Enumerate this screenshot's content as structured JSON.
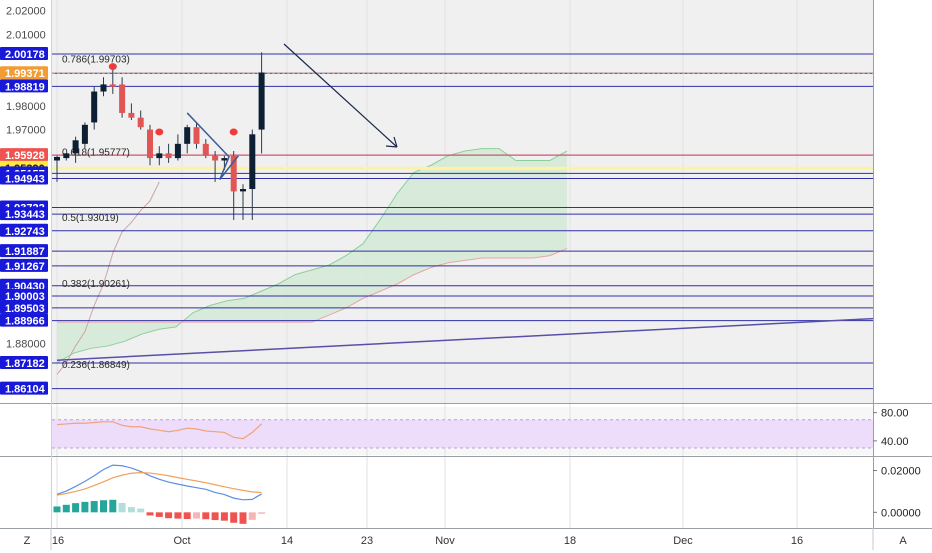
{
  "chart_data": {
    "type": "candlestick",
    "price_axis": {
      "ylim": [
        1.855,
        2.0245
      ],
      "ticks": [
        2.02,
        2.01,
        1.98,
        1.97,
        1.88
      ],
      "tick_labels": [
        "2.02000",
        "2.01000",
        "1.98000",
        "1.97000",
        "1.88000"
      ]
    },
    "x_axis": {
      "tick_labels": [
        "16",
        "Oct",
        "14",
        "23",
        "Nov",
        "18",
        "Dec",
        "16"
      ]
    },
    "candles": [
      {
        "o": 1.957,
        "h": 1.959,
        "l": 1.948,
        "c": 1.9585
      },
      {
        "o": 1.958,
        "h": 1.96,
        "l": 1.957,
        "c": 1.96
      },
      {
        "o": 1.96,
        "h": 1.967,
        "l": 1.956,
        "c": 1.9655
      },
      {
        "o": 1.964,
        "h": 1.973,
        "l": 1.962,
        "c": 1.972
      },
      {
        "o": 1.973,
        "h": 1.988,
        "l": 1.97,
        "c": 1.986
      },
      {
        "o": 1.986,
        "h": 1.992,
        "l": 1.984,
        "c": 1.989
      },
      {
        "o": 1.989,
        "h": 1.997,
        "l": 1.985,
        "c": 1.988
      },
      {
        "o": 1.989,
        "h": 1.992,
        "l": 1.975,
        "c": 1.977
      },
      {
        "o": 1.977,
        "h": 1.981,
        "l": 1.974,
        "c": 1.975
      },
      {
        "o": 1.975,
        "h": 1.978,
        "l": 1.97,
        "c": 1.971
      },
      {
        "o": 1.97,
        "h": 1.972,
        "l": 1.955,
        "c": 1.958
      },
      {
        "o": 1.958,
        "h": 1.963,
        "l": 1.955,
        "c": 1.96
      },
      {
        "o": 1.96,
        "h": 1.964,
        "l": 1.956,
        "c": 1.958
      },
      {
        "o": 1.958,
        "h": 1.968,
        "l": 1.957,
        "c": 1.964
      },
      {
        "o": 1.964,
        "h": 1.972,
        "l": 1.96,
        "c": 1.971
      },
      {
        "o": 1.971,
        "h": 1.973,
        "l": 1.962,
        "c": 1.964
      },
      {
        "o": 1.964,
        "h": 1.966,
        "l": 1.958,
        "c": 1.959
      },
      {
        "o": 1.959,
        "h": 1.961,
        "l": 1.948,
        "c": 1.957
      },
      {
        "o": 1.957,
        "h": 1.959,
        "l": 1.953,
        "c": 1.958
      },
      {
        "o": 1.959,
        "h": 1.961,
        "l": 1.932,
        "c": 1.944
      },
      {
        "o": 1.944,
        "h": 1.947,
        "l": 1.932,
        "c": 1.945
      },
      {
        "o": 1.945,
        "h": 1.97,
        "l": 1.932,
        "c": 1.968
      },
      {
        "o": 1.97,
        "h": 2.0025,
        "l": 1.96,
        "c": 1.994
      }
    ],
    "horizontal_levels": [
      2.00178,
      1.99371,
      1.98819,
      1.95928,
      1.9539,
      1.95157,
      1.94943,
      1.93722,
      1.93443,
      1.92743,
      1.91887,
      1.91267,
      1.9043,
      1.90003,
      1.89503,
      1.88966,
      1.87182,
      1.86104
    ],
    "price_labels": [
      {
        "text": "2.00178",
        "kind": "level"
      },
      {
        "text": "1.99371",
        "kind": "orange"
      },
      {
        "text": "1.98819",
        "kind": "level"
      },
      {
        "text": "1.95928",
        "kind": "red"
      },
      {
        "text": "1.95390",
        "kind": "yellow"
      },
      {
        "text": "1.95157",
        "kind": "level"
      },
      {
        "text": "1.94943",
        "kind": "level"
      },
      {
        "text": "1.93722",
        "kind": "level"
      },
      {
        "text": "1.93443",
        "kind": "level"
      },
      {
        "text": "1.92743",
        "kind": "level"
      },
      {
        "text": "1.91887",
        "kind": "level"
      },
      {
        "text": "1.91267",
        "kind": "level"
      },
      {
        "text": "1.90430",
        "kind": "level"
      },
      {
        "text": "1.90003",
        "kind": "level"
      },
      {
        "text": "1.89503",
        "kind": "level"
      },
      {
        "text": "1.88966",
        "kind": "level"
      },
      {
        "text": "1.87182",
        "kind": "level"
      },
      {
        "text": "1.86104",
        "kind": "level"
      }
    ],
    "fib_labels": [
      {
        "text": "0.786(1.99703)",
        "value": 1.99703
      },
      {
        "text": "0.618(1.95777)",
        "value": 1.95777
      },
      {
        "text": "0.5(1.93019)",
        "value": 1.93019
      },
      {
        "text": "0.382(1.90261)",
        "value": 1.90261
      },
      {
        "text": "0.236(1.86849)",
        "value": 1.86849
      }
    ],
    "rsi": {
      "ticks": [
        80.0,
        40.0
      ],
      "tick_labels": [
        "80.00",
        "40.00"
      ],
      "ylim": [
        20,
        88
      ],
      "band": [
        30,
        70
      ],
      "values": [
        63,
        64,
        65,
        65,
        66,
        67,
        67,
        62,
        60,
        60,
        57,
        55,
        53,
        55,
        58,
        57,
        54,
        53,
        52,
        45,
        43,
        52,
        64
      ]
    },
    "macd": {
      "ticks": [
        0.02,
        0.0
      ],
      "tick_labels": [
        "0.02000",
        "0.00000"
      ],
      "ylim": [
        -0.0075,
        0.026
      ],
      "macd": [
        0.0086,
        0.0102,
        0.0124,
        0.0148,
        0.0175,
        0.0205,
        0.0226,
        0.0223,
        0.0212,
        0.0196,
        0.0175,
        0.0158,
        0.0145,
        0.0135,
        0.0126,
        0.0118,
        0.011,
        0.0095,
        0.0085,
        0.0068,
        0.006,
        0.0062,
        0.0088
      ],
      "signal": [
        0.0082,
        0.009,
        0.01,
        0.0112,
        0.0128,
        0.0146,
        0.0165,
        0.0178,
        0.0187,
        0.019,
        0.0188,
        0.0182,
        0.0175,
        0.0166,
        0.0158,
        0.015,
        0.0142,
        0.0132,
        0.0122,
        0.0113,
        0.0105,
        0.0098,
        0.0095
      ],
      "hist": [
        0.0028,
        0.0036,
        0.0044,
        0.005,
        0.0054,
        0.0058,
        0.006,
        0.0045,
        0.0025,
        0.0018,
        -0.0015,
        -0.0022,
        -0.0028,
        -0.003,
        -0.0032,
        -0.003,
        -0.0033,
        -0.0037,
        -0.004,
        -0.005,
        -0.0055,
        -0.0036,
        -0.0007
      ]
    },
    "ichimoku": {
      "span_a": [
        1.872,
        1.876,
        1.878,
        1.879,
        1.881,
        1.884,
        1.886,
        1.887,
        1.893,
        1.896,
        1.898,
        1.899,
        1.902,
        1.905,
        1.909,
        1.911,
        1.913,
        1.917,
        1.922,
        1.932,
        1.943,
        1.952,
        1.955,
        1.959,
        1.961,
        1.962,
        1.962,
        1.957,
        1.957,
        1.957,
        1.961
      ],
      "span_b": [
        1.889,
        1.889,
        1.889,
        1.889,
        1.889,
        1.889,
        1.889,
        1.889,
        1.889,
        1.889,
        1.889,
        1.889,
        1.889,
        1.889,
        1.889,
        1.889,
        1.892,
        1.895,
        1.899,
        1.902,
        1.905,
        1.909,
        1.912,
        1.914,
        1.915,
        1.916,
        1.916,
        1.916,
        1.916,
        1.917,
        1.92
      ],
      "lagging": [
        1.867,
        1.872,
        1.879,
        1.885,
        1.896,
        1.905,
        1.918,
        1.927,
        1.931,
        1.936,
        1.94,
        1.948
      ]
    },
    "footer": {
      "left": "Z",
      "right": "A"
    },
    "colors": {
      "up": "#0c1f33",
      "down": "#e05655",
      "level": "#2f2fa8",
      "label_blue": "#1818d8",
      "orange": "#f39c33",
      "red": "#ef5350",
      "yellow": "#fff39b",
      "cloud": "#d3ead7",
      "rsi_bg": "#eedcfb",
      "rsi_line": "#f0a27b",
      "macd_line": "#5b8fe6",
      "signal_line": "#f0a15c",
      "hist_up": "#26a69a",
      "hist_up_light": "#b2dfdb",
      "hist_down": "#ef5350",
      "hist_down_light": "#f7b5b5"
    }
  }
}
